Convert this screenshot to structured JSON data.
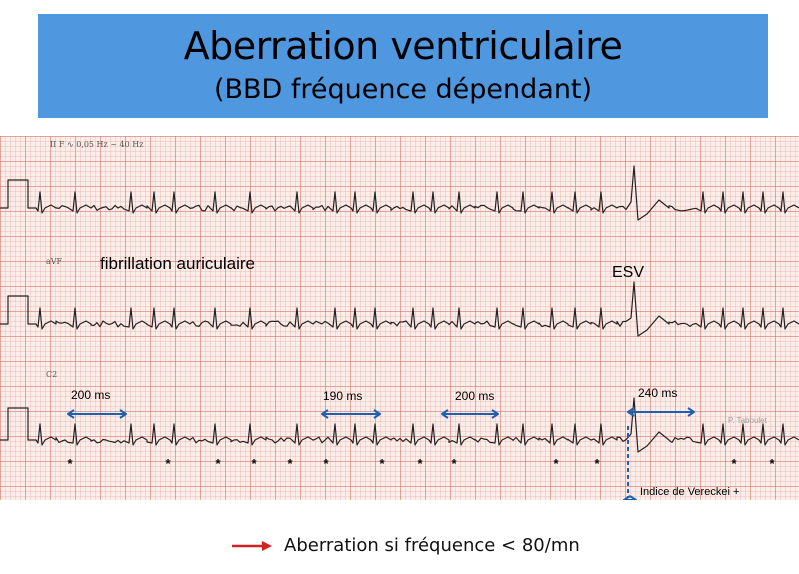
{
  "title": {
    "main": "Aberration ventriculaire",
    "subtitle": "(BBD fréquence dépendant)"
  },
  "ecg": {
    "lead_labels": [
      "II",
      "aVF",
      "C2"
    ],
    "header_text": "II   F ∿ 0,05 Hz ~ 40 Hz",
    "rhythm_label": "fibrillation auriculaire",
    "esv_label": "ESV",
    "intervals": [
      "200 ms",
      "190 ms",
      "200 ms",
      "240 ms"
    ],
    "vereckei_label": "Indice de Vereckei +",
    "credit": "P. Taboulet",
    "beat_marker": "*"
  },
  "caption": {
    "text": "Aberration si fréquence < 80/mn"
  },
  "colors": {
    "title_bg": "#4f97df",
    "interval_arrow": "#1f5fb0",
    "caption_arrow": "#d42020",
    "trace": "#222222"
  }
}
